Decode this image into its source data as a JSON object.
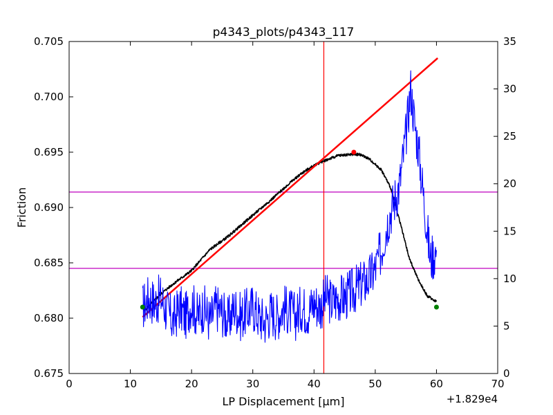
{
  "chart_data": {
    "type": "line",
    "title": "p4343_plots/p4343_117",
    "xlabel": "LP Displacement [μm]",
    "x_offset_label": "+1.829e4",
    "ylabel_left": "Friction",
    "ylabel_right": "",
    "xlim": [
      0,
      70
    ],
    "ylim_left": [
      0.675,
      0.705
    ],
    "ylim_right": [
      0,
      35
    ],
    "x_ticks": [
      "0",
      "10",
      "20",
      "30",
      "40",
      "50",
      "60",
      "70"
    ],
    "y_left_ticks": [
      "0.675",
      "0.680",
      "0.685",
      "0.690",
      "0.695",
      "0.700",
      "0.705"
    ],
    "y_right_ticks": [
      "0",
      "5",
      "10",
      "15",
      "20",
      "25",
      "30",
      "35"
    ],
    "grid": false,
    "colors": {
      "friction": "#000000",
      "fit": "#ff0000",
      "secondary": "#0000ff",
      "hlines": "#bf00bf",
      "vline": "#ff0000",
      "markers_end": "#008000",
      "marker_peak": "#ff0000"
    },
    "series": [
      {
        "axis": "left",
        "color": "#000000",
        "x": [
          12.3,
          15,
          17,
          20,
          23,
          26,
          30,
          33,
          36,
          38,
          40,
          42,
          44,
          46,
          47.5,
          49,
          51,
          52.5,
          54,
          55.5,
          57,
          58.5,
          60
        ],
        "y": [
          0.6807,
          0.6822,
          0.6831,
          0.6843,
          0.6862,
          0.6874,
          0.6893,
          0.6907,
          0.6922,
          0.6931,
          0.6938,
          0.6943,
          0.6947,
          0.6948,
          0.6948,
          0.6944,
          0.6934,
          0.6918,
          0.6888,
          0.6855,
          0.6835,
          0.682,
          0.6815
        ]
      },
      {
        "axis": "left",
        "color": "#ff0000",
        "x": [
          12.0,
          60.2
        ],
        "y": [
          0.6801,
          0.7035
        ]
      },
      {
        "axis": "right",
        "color": "#0000ff",
        "x": [
          12.0,
          13.0,
          14.0,
          15.0,
          16.0,
          17.0,
          18.0,
          19.0,
          20.0,
          21.0,
          22.0,
          23.0,
          24.0,
          25.0,
          26.0,
          27.0,
          28.0,
          29.0,
          30.0,
          31.0,
          32.0,
          33.0,
          34.0,
          35.0,
          36.0,
          37.0,
          38.0,
          39.0,
          40.0,
          41.0,
          42.0,
          43.0,
          44.0,
          45.0,
          46.0,
          47.0,
          48.0,
          49.0,
          50.0,
          51.0,
          52.0,
          53.0,
          54.0,
          55.0,
          55.8,
          56.5,
          57.0,
          58.0,
          59.0,
          60.0
        ],
        "y": [
          7,
          8,
          7.5,
          8,
          6.5,
          5.5,
          7,
          6,
          7.5,
          6,
          7,
          5.5,
          7,
          6.5,
          5.5,
          7,
          6,
          6.5,
          7,
          6,
          5.5,
          6.5,
          6,
          7,
          6.5,
          6,
          7,
          6.5,
          7.5,
          7,
          8,
          7.5,
          8,
          8,
          8.5,
          9,
          9.5,
          10,
          11,
          13,
          16,
          18,
          20,
          25,
          30,
          26,
          24,
          18,
          12,
          13
        ]
      }
    ],
    "hlines_left": [
      0.6914,
      0.6845
    ],
    "vline_x": 41.6,
    "markers": [
      {
        "x": 12.0,
        "y": 0.681,
        "color": "#008000"
      },
      {
        "x": 60.0,
        "y": 0.681,
        "color": "#008000"
      },
      {
        "x": 46.5,
        "y": 0.695,
        "color": "#ff0000"
      }
    ]
  }
}
